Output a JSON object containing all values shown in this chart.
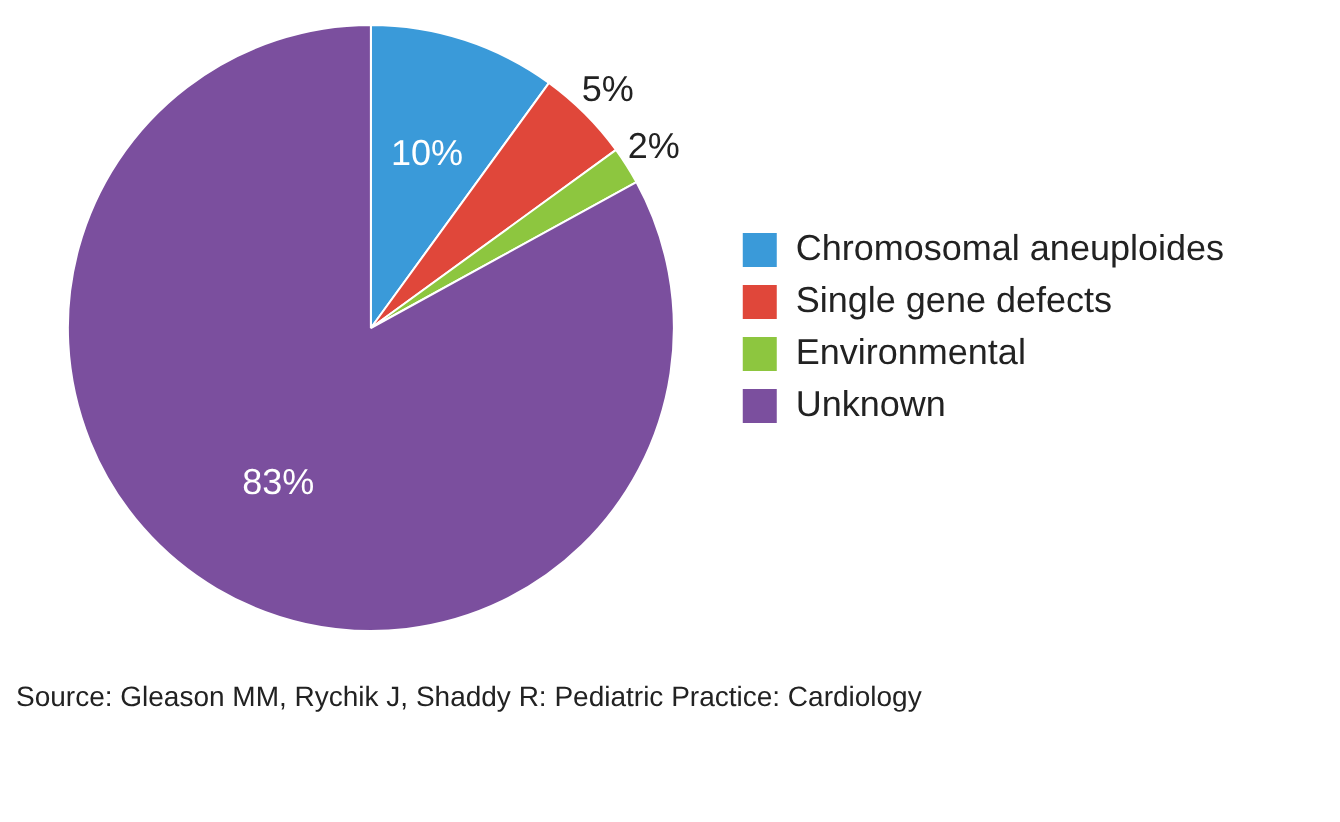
{
  "chart_data": {
    "type": "pie",
    "categories": [
      "Chromosomal aneuploides",
      "Single gene defects",
      "Environmental",
      "Unknown"
    ],
    "values": [
      10,
      5,
      2,
      83
    ],
    "colors": [
      "#3a9ad9",
      "#e0473a",
      "#8dc63f",
      "#7b4f9e"
    ],
    "value_labels": [
      "10%",
      "5%",
      "2%",
      "83%"
    ],
    "legend": "right",
    "annotations": [
      "Source: Gleason MM, Rychik J, Shaddy R: Pediatric Practice: Cardiology"
    ]
  }
}
